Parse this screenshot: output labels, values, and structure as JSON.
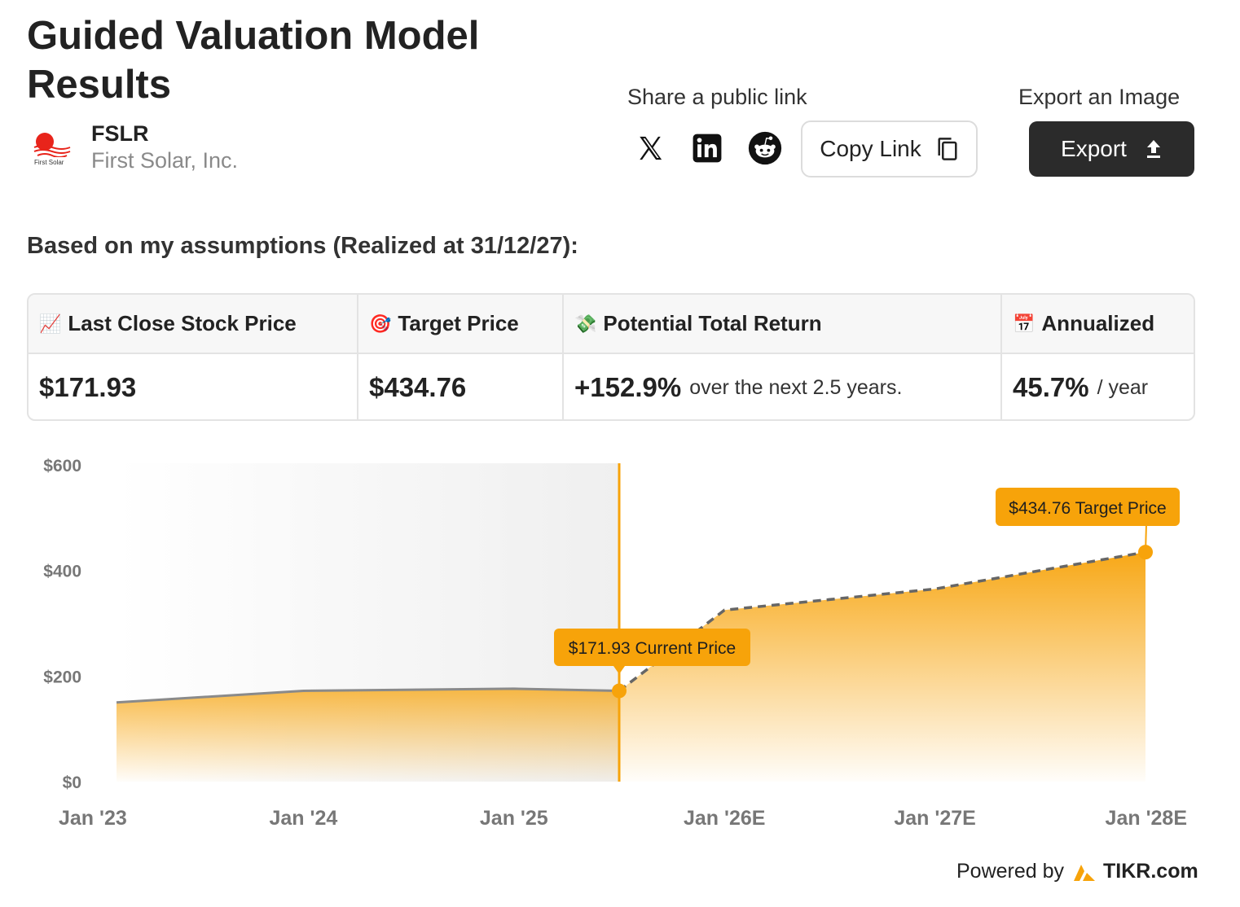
{
  "header": {
    "title": "Guided Valuation Model Results",
    "ticker": "FSLR",
    "company_name": "First Solar, Inc.",
    "logo_text": "First Solar"
  },
  "share": {
    "label": "Share a public link",
    "copy_label": "Copy Link",
    "icons": [
      "x-icon",
      "linkedin-icon",
      "reddit-icon",
      "copy-icon"
    ]
  },
  "export": {
    "label": "Export an Image",
    "button_label": "Export",
    "icon": "upload-icon"
  },
  "assumptions_text": "Based on my assumptions (Realized at 31/12/27):",
  "table": {
    "headers": [
      {
        "emoji": "📈",
        "label": "Last Close Stock Price"
      },
      {
        "emoji": "🎯",
        "label": "Target Price"
      },
      {
        "emoji": "💸",
        "label": "Potential Total Return"
      },
      {
        "emoji": "📅",
        "label": "Annualized"
      }
    ],
    "values": [
      {
        "value": "$171.93",
        "suffix": ""
      },
      {
        "value": "$434.76",
        "suffix": ""
      },
      {
        "value": "+152.9%",
        "suffix": "over the next 2.5 years."
      },
      {
        "value": "45.7%",
        "suffix": "/ year"
      }
    ]
  },
  "chart_data": {
    "type": "area",
    "y_ticks": [
      "$600",
      "$400",
      "$200",
      "$0"
    ],
    "x_ticks": [
      "Jan '23",
      "Jan '24",
      "Jan '25",
      "Jan '26E",
      "Jan '27E",
      "Jan '28E"
    ],
    "ylim": [
      0,
      600
    ],
    "historical": {
      "x": [
        "2023-01",
        "2024-01",
        "2025-01",
        "2025-07"
      ],
      "y": [
        150,
        172,
        176,
        171.93
      ]
    },
    "projected": {
      "x": [
        "2025-07",
        "2026-01",
        "2027-01",
        "2028-01"
      ],
      "y": [
        171.93,
        325,
        365,
        434.76
      ]
    },
    "current_label": "$171.93 Current Price",
    "target_label": "$434.76 Target Price",
    "colors": {
      "accent": "#f7a30a",
      "line": "#8a8a8a",
      "dashed": "#666666",
      "shade": "#f2f2f2"
    }
  },
  "footer": {
    "powered_by": "Powered by",
    "brand": "TIKR.com"
  }
}
